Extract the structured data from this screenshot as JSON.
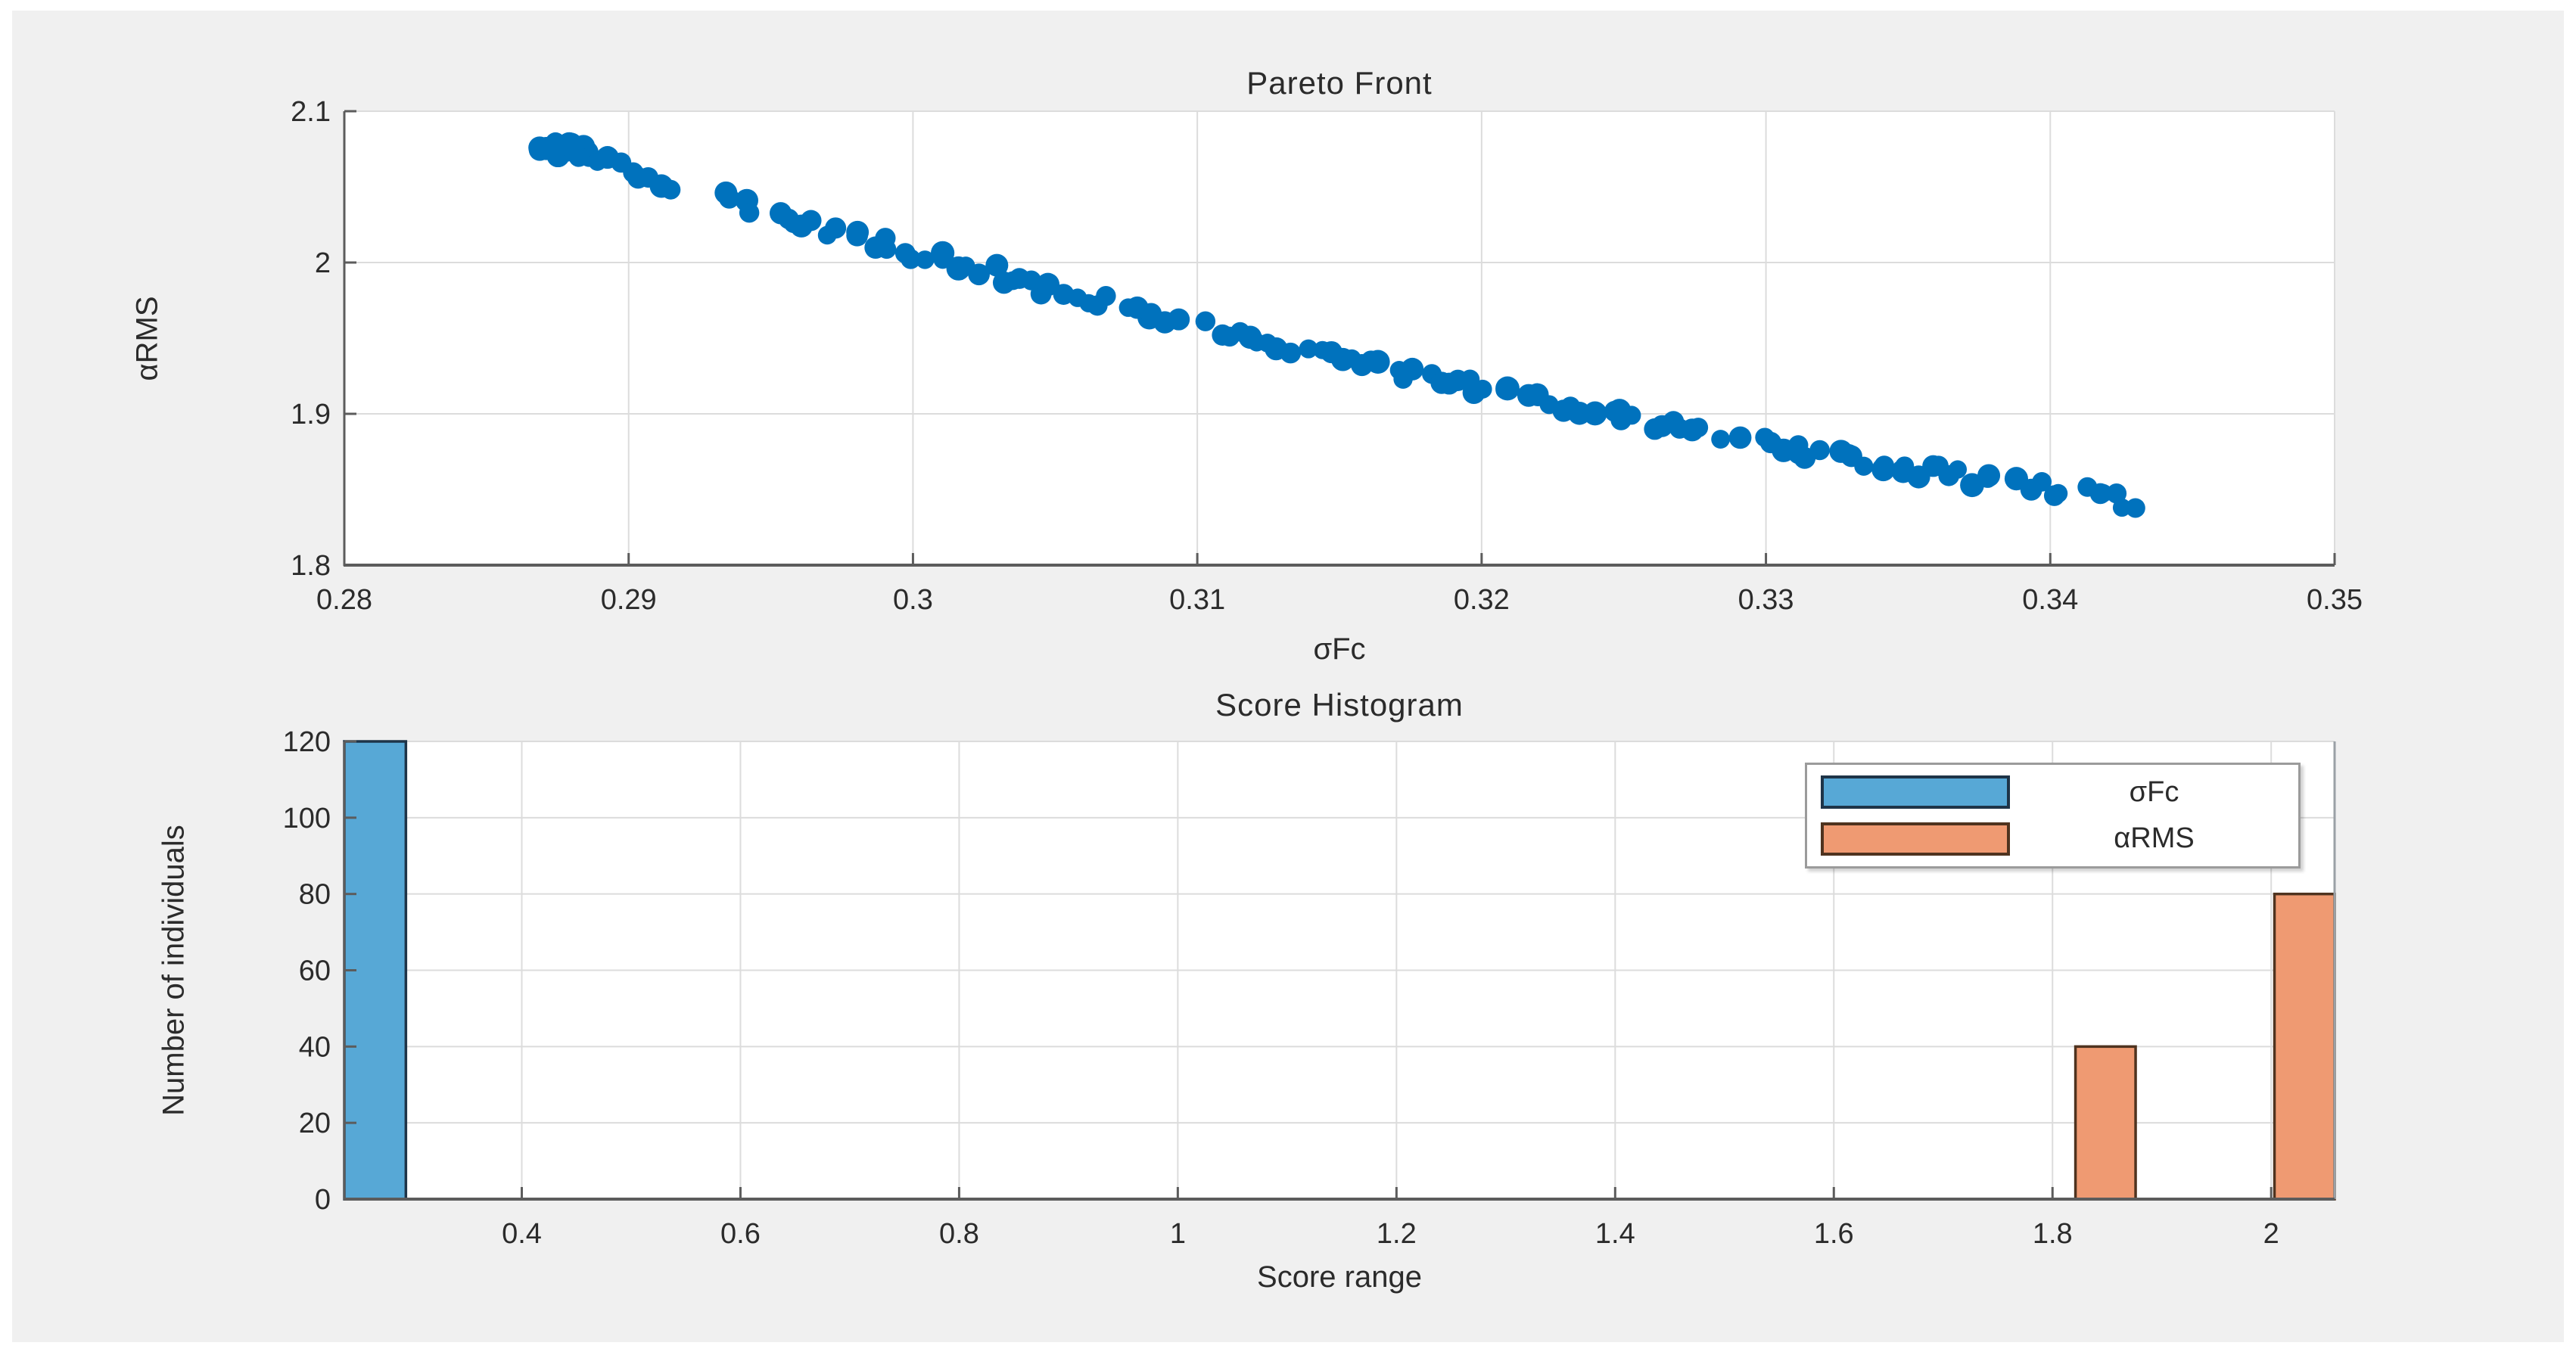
{
  "figure": {
    "background_color": "#f0f0f0",
    "plot_background_color": "#ffffff",
    "grid_color": "#dcdcdc",
    "spine_color": "#5c5c5c",
    "right_spine_color": "#9aa0a6",
    "text_color": "#2b2b2b"
  },
  "chart_data": [
    {
      "type": "scatter",
      "title": "Pareto Front",
      "xlabel": "σFc",
      "ylabel": "αRMS",
      "xlim": [
        0.28,
        0.35
      ],
      "ylim": [
        1.8,
        2.1
      ],
      "grid": true,
      "marker_color": "#0072bd",
      "xtick_values": [
        0.28,
        0.29,
        0.3,
        0.31,
        0.32,
        0.33,
        0.34,
        0.35
      ],
      "xtick_labels": [
        "0.28",
        "0.29",
        "0.3",
        "0.31",
        "0.32",
        "0.33",
        "0.34",
        "0.35"
      ],
      "ytick_values": [
        1.8,
        1.9,
        2.0,
        2.1
      ],
      "ytick_labels": [
        "1.8",
        "1.9",
        "2",
        "2.1"
      ],
      "x_range": [
        0.2868,
        0.3432
      ],
      "curve_anchors": [
        [
          0.2868,
          2.0802
        ],
        [
          0.29,
          2.0616
        ],
        [
          0.292,
          2.0502
        ],
        [
          0.294,
          2.0391
        ],
        [
          0.296,
          2.0282
        ],
        [
          0.298,
          2.0176
        ],
        [
          0.3,
          2.0072
        ],
        [
          0.302,
          1.9971
        ],
        [
          0.304,
          1.9872
        ],
        [
          0.306,
          1.9775
        ],
        [
          0.308,
          1.9681
        ],
        [
          0.31,
          1.9589
        ],
        [
          0.312,
          1.95
        ],
        [
          0.314,
          1.9413
        ],
        [
          0.316,
          1.9328
        ],
        [
          0.318,
          1.9246
        ],
        [
          0.32,
          1.9166
        ],
        [
          0.322,
          1.9088
        ],
        [
          0.324,
          1.9013
        ],
        [
          0.326,
          1.8941
        ],
        [
          0.328,
          1.887
        ],
        [
          0.33,
          1.8803
        ],
        [
          0.332,
          1.8737
        ],
        [
          0.334,
          1.8674
        ],
        [
          0.336,
          1.8613
        ],
        [
          0.338,
          1.8555
        ],
        [
          0.34,
          1.8499
        ],
        [
          0.342,
          1.8446
        ],
        [
          0.3432,
          1.8416
        ]
      ],
      "gaps": [
        [
          0.2921,
          0.2929
        ],
        [
          0.2944,
          0.2951
        ],
        [
          0.3094,
          0.3101
        ],
        [
          0.3285,
          0.3293
        ],
        [
          0.3381,
          0.3388
        ],
        [
          0.3404,
          0.341
        ]
      ]
    },
    {
      "type": "bar",
      "title": "Score Histogram",
      "xlabel": "Score range",
      "ylabel": "Number of individuals",
      "xlim": [
        0.2377,
        2.058
      ],
      "ylim": [
        0,
        120
      ],
      "grid": true,
      "xtick_values": [
        0.4,
        0.6,
        0.8,
        1.0,
        1.2,
        1.4,
        1.6,
        1.8,
        2.0
      ],
      "xtick_labels": [
        "0.4",
        "0.6",
        "0.8",
        "1",
        "1.2",
        "1.4",
        "1.6",
        "1.8",
        "2"
      ],
      "ytick_values": [
        0,
        20,
        40,
        60,
        80,
        100,
        120
      ],
      "ytick_labels": [
        "0",
        "20",
        "40",
        "60",
        "80",
        "100",
        "120"
      ],
      "series": [
        {
          "name": "σFc",
          "fill": "#57a8d6",
          "edge": "#1e3448",
          "bars": [
            {
              "x0": 0.2377,
              "x1": 0.294,
              "count": 120
            }
          ]
        },
        {
          "name": "αRMS",
          "fill": "#ef9a72",
          "edge": "#4f331f",
          "bars": [
            {
              "x0": 1.821,
              "x1": 1.876,
              "count": 40
            },
            {
              "x0": 2.003,
              "x1": 2.058,
              "count": 80
            }
          ]
        }
      ],
      "legend": [
        {
          "label": "σFc",
          "fill": "#57a8d6",
          "edge": "#1e3448"
        },
        {
          "label": "αRMS",
          "fill": "#ef9a72",
          "edge": "#4f331f"
        }
      ],
      "legend_position": "upper-right"
    }
  ]
}
